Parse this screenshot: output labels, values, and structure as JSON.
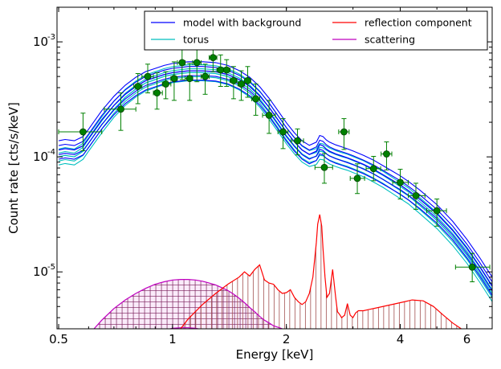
{
  "chart_data": {
    "type": "line",
    "xlabel": "Energy [keV]",
    "ylabel": "Count rate [cts/s/keV]",
    "xscale": "log",
    "yscale": "log",
    "xlim": [
      0.495,
      7.0
    ],
    "ylim": [
      3.2e-06,
      0.002
    ],
    "x_ticks": [
      {
        "value": 0.5,
        "label": "0.5"
      },
      {
        "value": 1,
        "label": "1"
      },
      {
        "value": 2,
        "label": "2"
      },
      {
        "value": 4,
        "label": "4"
      },
      {
        "value": 6,
        "label": "6"
      }
    ],
    "y_ticks": [
      {
        "value": 0.001,
        "base": "10",
        "exp": "-3"
      },
      {
        "value": 0.0001,
        "base": "10",
        "exp": "-4"
      },
      {
        "value": 1e-05,
        "base": "10",
        "exp": "-5"
      }
    ],
    "legend": {
      "placement": "top-right",
      "columns": 2,
      "entries": [
        {
          "label": "model with background",
          "color": "#0000ff"
        },
        {
          "label": "reflection component",
          "color": "#ff0000"
        },
        {
          "label": "torus",
          "color": "#00bfbf"
        },
        {
          "label": "scattering",
          "color": "#bf00bf"
        }
      ]
    },
    "colors": {
      "model": "#0000ff",
      "torus": "#00bfbf",
      "reflection": "#ff0000",
      "reflection_hatch": "#a05050",
      "scattering": "#bf00bf",
      "scattering_hatch": "#7a1f5a",
      "data_points": "#008000",
      "data_edge": "#004000"
    },
    "data_points": [
      {
        "x": 0.58,
        "y": 0.000165,
        "xerr": [
          0.5,
          0.65
        ],
        "yerr": [
          0.000113,
          0.00024
        ]
      },
      {
        "x": 0.73,
        "y": 0.00026,
        "xerr": [
          0.66,
          0.8
        ],
        "yerr": [
          0.00017,
          0.00036
        ]
      },
      {
        "x": 0.81,
        "y": 0.00041,
        "xerr": [
          0.79,
          0.83
        ],
        "yerr": [
          0.00029,
          0.00053
        ]
      },
      {
        "x": 0.86,
        "y": 0.0005,
        "xerr": [
          0.83,
          0.89
        ],
        "yerr": [
          0.00036,
          0.00064
        ]
      },
      {
        "x": 0.91,
        "y": 0.00036,
        "xerr": [
          0.89,
          0.94
        ],
        "yerr": [
          0.00026,
          0.00054
        ]
      },
      {
        "x": 0.96,
        "y": 0.00043,
        "xerr": [
          0.94,
          0.99
        ],
        "yerr": [
          0.00032,
          0.00055
        ]
      },
      {
        "x": 1.01,
        "y": 0.00048,
        "xerr": [
          0.99,
          1.03
        ],
        "yerr": [
          0.00031,
          0.00067
        ]
      },
      {
        "x": 1.06,
        "y": 0.00066,
        "xerr": [
          1.03,
          1.08
        ],
        "yerr": [
          0.00047,
          0.00086
        ]
      },
      {
        "x": 1.11,
        "y": 0.00048,
        "xerr": [
          1.08,
          1.13
        ],
        "yerr": [
          0.00031,
          0.00065
        ]
      },
      {
        "x": 1.16,
        "y": 0.00066,
        "xerr": [
          1.13,
          1.19
        ],
        "yerr": [
          0.00045,
          0.00086
        ]
      },
      {
        "x": 1.22,
        "y": 0.0005,
        "xerr": [
          1.19,
          1.25
        ],
        "yerr": [
          0.00035,
          0.00064
        ]
      },
      {
        "x": 1.28,
        "y": 0.00073,
        "xerr": [
          1.25,
          1.31
        ],
        "yerr": [
          0.00055,
          0.00095
        ]
      },
      {
        "x": 1.34,
        "y": 0.00057,
        "xerr": [
          1.31,
          1.36
        ],
        "yerr": [
          0.00041,
          0.00077
        ]
      },
      {
        "x": 1.39,
        "y": 0.00057,
        "xerr": [
          1.36,
          1.42
        ],
        "yerr": [
          0.00041,
          0.0007
        ]
      },
      {
        "x": 1.45,
        "y": 0.00046,
        "xerr": [
          1.42,
          1.48
        ],
        "yerr": [
          0.00032,
          0.00061
        ]
      },
      {
        "x": 1.52,
        "y": 0.00043,
        "xerr": [
          1.49,
          1.55
        ],
        "yerr": [
          0.00031,
          0.00056
        ]
      },
      {
        "x": 1.58,
        "y": 0.00046,
        "xerr": [
          1.55,
          1.61
        ],
        "yerr": [
          0.00033,
          0.00061
        ]
      },
      {
        "x": 1.66,
        "y": 0.00032,
        "xerr": [
          1.62,
          1.7
        ],
        "yerr": [
          0.00023,
          0.00043
        ]
      },
      {
        "x": 1.8,
        "y": 0.00023,
        "xerr": [
          1.73,
          1.87
        ],
        "yerr": [
          0.00016,
          0.00031
        ]
      },
      {
        "x": 1.96,
        "y": 0.000165,
        "xerr": [
          1.9,
          2.02
        ],
        "yerr": [
          0.000118,
          0.000215
        ]
      },
      {
        "x": 2.14,
        "y": 0.000138,
        "xerr": [
          2.06,
          2.22
        ],
        "yerr": [
          0.000104,
          0.000175
        ]
      },
      {
        "x": 2.52,
        "y": 8.1e-05,
        "xerr": [
          2.38,
          2.65
        ],
        "yerr": [
          5.9e-05,
          0.000107
        ]
      },
      {
        "x": 2.84,
        "y": 0.000165,
        "xerr": [
          2.75,
          2.93
        ],
        "yerr": [
          0.000116,
          0.000215
        ]
      },
      {
        "x": 3.08,
        "y": 6.5e-05,
        "xerr": [
          2.95,
          3.22
        ],
        "yerr": [
          4.8e-05,
          8.7e-05
        ]
      },
      {
        "x": 3.4,
        "y": 7.9e-05,
        "xerr": [
          3.25,
          3.55
        ],
        "yerr": [
          6.2e-05,
          0.000101
        ]
      },
      {
        "x": 3.68,
        "y": 0.000106,
        "xerr": [
          3.56,
          3.8
        ],
        "yerr": [
          7.7e-05,
          0.000135
        ]
      },
      {
        "x": 4.0,
        "y": 6e-05,
        "xerr": [
          3.82,
          4.2
        ],
        "yerr": [
          4.3e-05,
          7.8e-05
        ]
      },
      {
        "x": 4.4,
        "y": 4.6e-05,
        "xerr": [
          4.2,
          4.65
        ],
        "yerr": [
          3.5e-05,
          5.9e-05
        ]
      },
      {
        "x": 5.0,
        "y": 3.4e-05,
        "xerr": [
          4.7,
          5.3
        ],
        "yerr": [
          2.5e-05,
          4.3e-05
        ]
      },
      {
        "x": 6.2,
        "y": 1.1e-05,
        "xerr": [
          5.6,
          6.9
        ],
        "yerr": [
          8.2e-06,
          1.45e-05
        ]
      }
    ],
    "model_curve": {
      "x": [
        0.5,
        0.52,
        0.55,
        0.58,
        0.6,
        0.65,
        0.7,
        0.75,
        0.8,
        0.85,
        0.9,
        0.95,
        1.0,
        1.05,
        1.1,
        1.15,
        1.2,
        1.3,
        1.4,
        1.5,
        1.6,
        1.7,
        1.8,
        1.9,
        2.0,
        2.1,
        2.2,
        2.3,
        2.4,
        2.45,
        2.5,
        2.55,
        2.6,
        2.7,
        2.8,
        2.9,
        3.0,
        3.2,
        3.4,
        3.6,
        3.8,
        4.0,
        4.2,
        4.5,
        5.0,
        5.5,
        6.0,
        6.5,
        7.0
      ],
      "y": [
        0.000115,
        0.000118,
        0.000115,
        0.000125,
        0.000145,
        0.00021,
        0.00028,
        0.00035,
        0.00041,
        0.00046,
        0.00049,
        0.00052,
        0.00054,
        0.00055,
        0.00056,
        0.00056,
        0.00056,
        0.00055,
        0.00052,
        0.00047,
        0.00041,
        0.00034,
        0.00027,
        0.00021,
        0.000165,
        0.000135,
        0.000115,
        0.000105,
        0.000112,
        0.000128,
        0.000125,
        0.000117,
        0.000112,
        0.000106,
        0.000102,
        9.8e-05,
        9.4e-05,
        8.6e-05,
        7.8e-05,
        7e-05,
        6.3e-05,
        5.7e-05,
        5.1e-05,
        4.3e-05,
        3.2e-05,
        2.3e-05,
        1.6e-05,
        1.1e-05,
        7.5e-06
      ],
      "band_spread": [
        0.83,
        0.91,
        1.09,
        1.2
      ]
    },
    "torus_curve": {
      "x": [
        0.5,
        0.52,
        0.55,
        0.58,
        0.6,
        0.65,
        0.7,
        0.75,
        0.8,
        0.85,
        0.9,
        0.95,
        1.0,
        1.05,
        1.1,
        1.15,
        1.2,
        1.3,
        1.4,
        1.5,
        1.6,
        1.7,
        1.8,
        1.9,
        2.0,
        2.1,
        2.2,
        2.3,
        2.4,
        2.45,
        2.5,
        2.55,
        2.6,
        2.7,
        2.8,
        2.9,
        3.0,
        3.2,
        3.4,
        3.6,
        3.8,
        4.0,
        4.2,
        4.5,
        5.0,
        5.5,
        6.0,
        6.5,
        7.0
      ],
      "y": [
        0.0001,
        0.000103,
        0.0001,
        0.000112,
        0.000132,
        0.00019,
        0.00026,
        0.00033,
        0.00039,
        0.00044,
        0.00047,
        0.0005,
        0.00052,
        0.00053,
        0.00054,
        0.00054,
        0.00054,
        0.00053,
        0.0005,
        0.00045,
        0.00039,
        0.00032,
        0.00025,
        0.000195,
        0.000153,
        0.000125,
        0.000106,
        9.7e-05,
        0.000101,
        0.000112,
        0.000111,
        0.000106,
        0.000102,
        9.7e-05,
        9.3e-05,
        9e-05,
        8.6e-05,
        7.9e-05,
        7.1e-05,
        6.4e-05,
        5.7e-05,
        5.1e-05,
        4.6e-05,
        3.8e-05,
        2.8e-05,
        2e-05,
        1.4e-05,
        9.5e-06,
        6.5e-06
      ],
      "band_spread": [
        0.85,
        0.92,
        1.08,
        1.17
      ]
    },
    "reflection_curve": {
      "x": [
        1.05,
        1.1,
        1.2,
        1.3,
        1.4,
        1.5,
        1.55,
        1.6,
        1.65,
        1.7,
        1.75,
        1.8,
        1.85,
        1.9,
        1.95,
        2.0,
        2.05,
        2.1,
        2.15,
        2.2,
        2.25,
        2.3,
        2.35,
        2.4,
        2.42,
        2.45,
        2.48,
        2.5,
        2.53,
        2.56,
        2.6,
        2.65,
        2.7,
        2.73,
        2.76,
        2.8,
        2.85,
        2.9,
        2.95,
        3.0,
        3.05,
        3.1,
        3.2,
        3.3,
        3.5,
        3.7,
        4.0,
        4.3,
        4.6,
        4.9,
        5.2,
        5.5,
        5.8
      ],
      "y": [
        3.2e-06,
        3.9e-06,
        5.2e-06,
        6.5e-06,
        7.8e-06,
        9e-06,
        1e-05,
        9.2e-06,
        1.05e-05,
        1.15e-05,
        8.5e-06,
        8e-06,
        7.8e-06,
        7e-06,
        6.5e-06,
        6.6e-06,
        7e-06,
        6e-06,
        5.5e-06,
        5.2e-06,
        5.5e-06,
        6.5e-06,
        9e-06,
        1.8e-05,
        2.6e-05,
        3.15e-05,
        2.5e-05,
        1.6e-05,
        9e-06,
        6e-06,
        6.5e-06,
        1.05e-05,
        6e-06,
        4.5e-06,
        4.3e-06,
        4e-06,
        4.2e-06,
        5.3e-06,
        4.2e-06,
        4e-06,
        4.4e-06,
        4.6e-06,
        4.6e-06,
        4.7e-06,
        4.9e-06,
        5.1e-06,
        5.4e-06,
        5.7e-06,
        5.6e-06,
        5e-06,
        4.2e-06,
        3.6e-06,
        3.2e-06
      ]
    },
    "scattering_curve": {
      "x": [
        0.62,
        0.65,
        0.7,
        0.75,
        0.8,
        0.85,
        0.9,
        0.95,
        1.0,
        1.05,
        1.1,
        1.15,
        1.2,
        1.25,
        1.3,
        1.35,
        1.4,
        1.45,
        1.5,
        1.55,
        1.6,
        1.65,
        1.7,
        1.75,
        1.8,
        1.85,
        1.9,
        1.95
      ],
      "y": [
        3.2e-06,
        3.8e-06,
        4.8e-06,
        5.7e-06,
        6.5e-06,
        7.2e-06,
        7.8e-06,
        8.2e-06,
        8.5e-06,
        8.6e-06,
        8.6e-06,
        8.5e-06,
        8.3e-06,
        8e-06,
        7.7e-06,
        7.3e-06,
        6.9e-06,
        6.4e-06,
        5.9e-06,
        5.4e-06,
        4.9e-06,
        4.5e-06,
        4.1e-06,
        3.8e-06,
        3.6e-06,
        3.4e-06,
        3.3e-06,
        3.2e-06
      ],
      "band_low_factor": 0.38
    }
  }
}
